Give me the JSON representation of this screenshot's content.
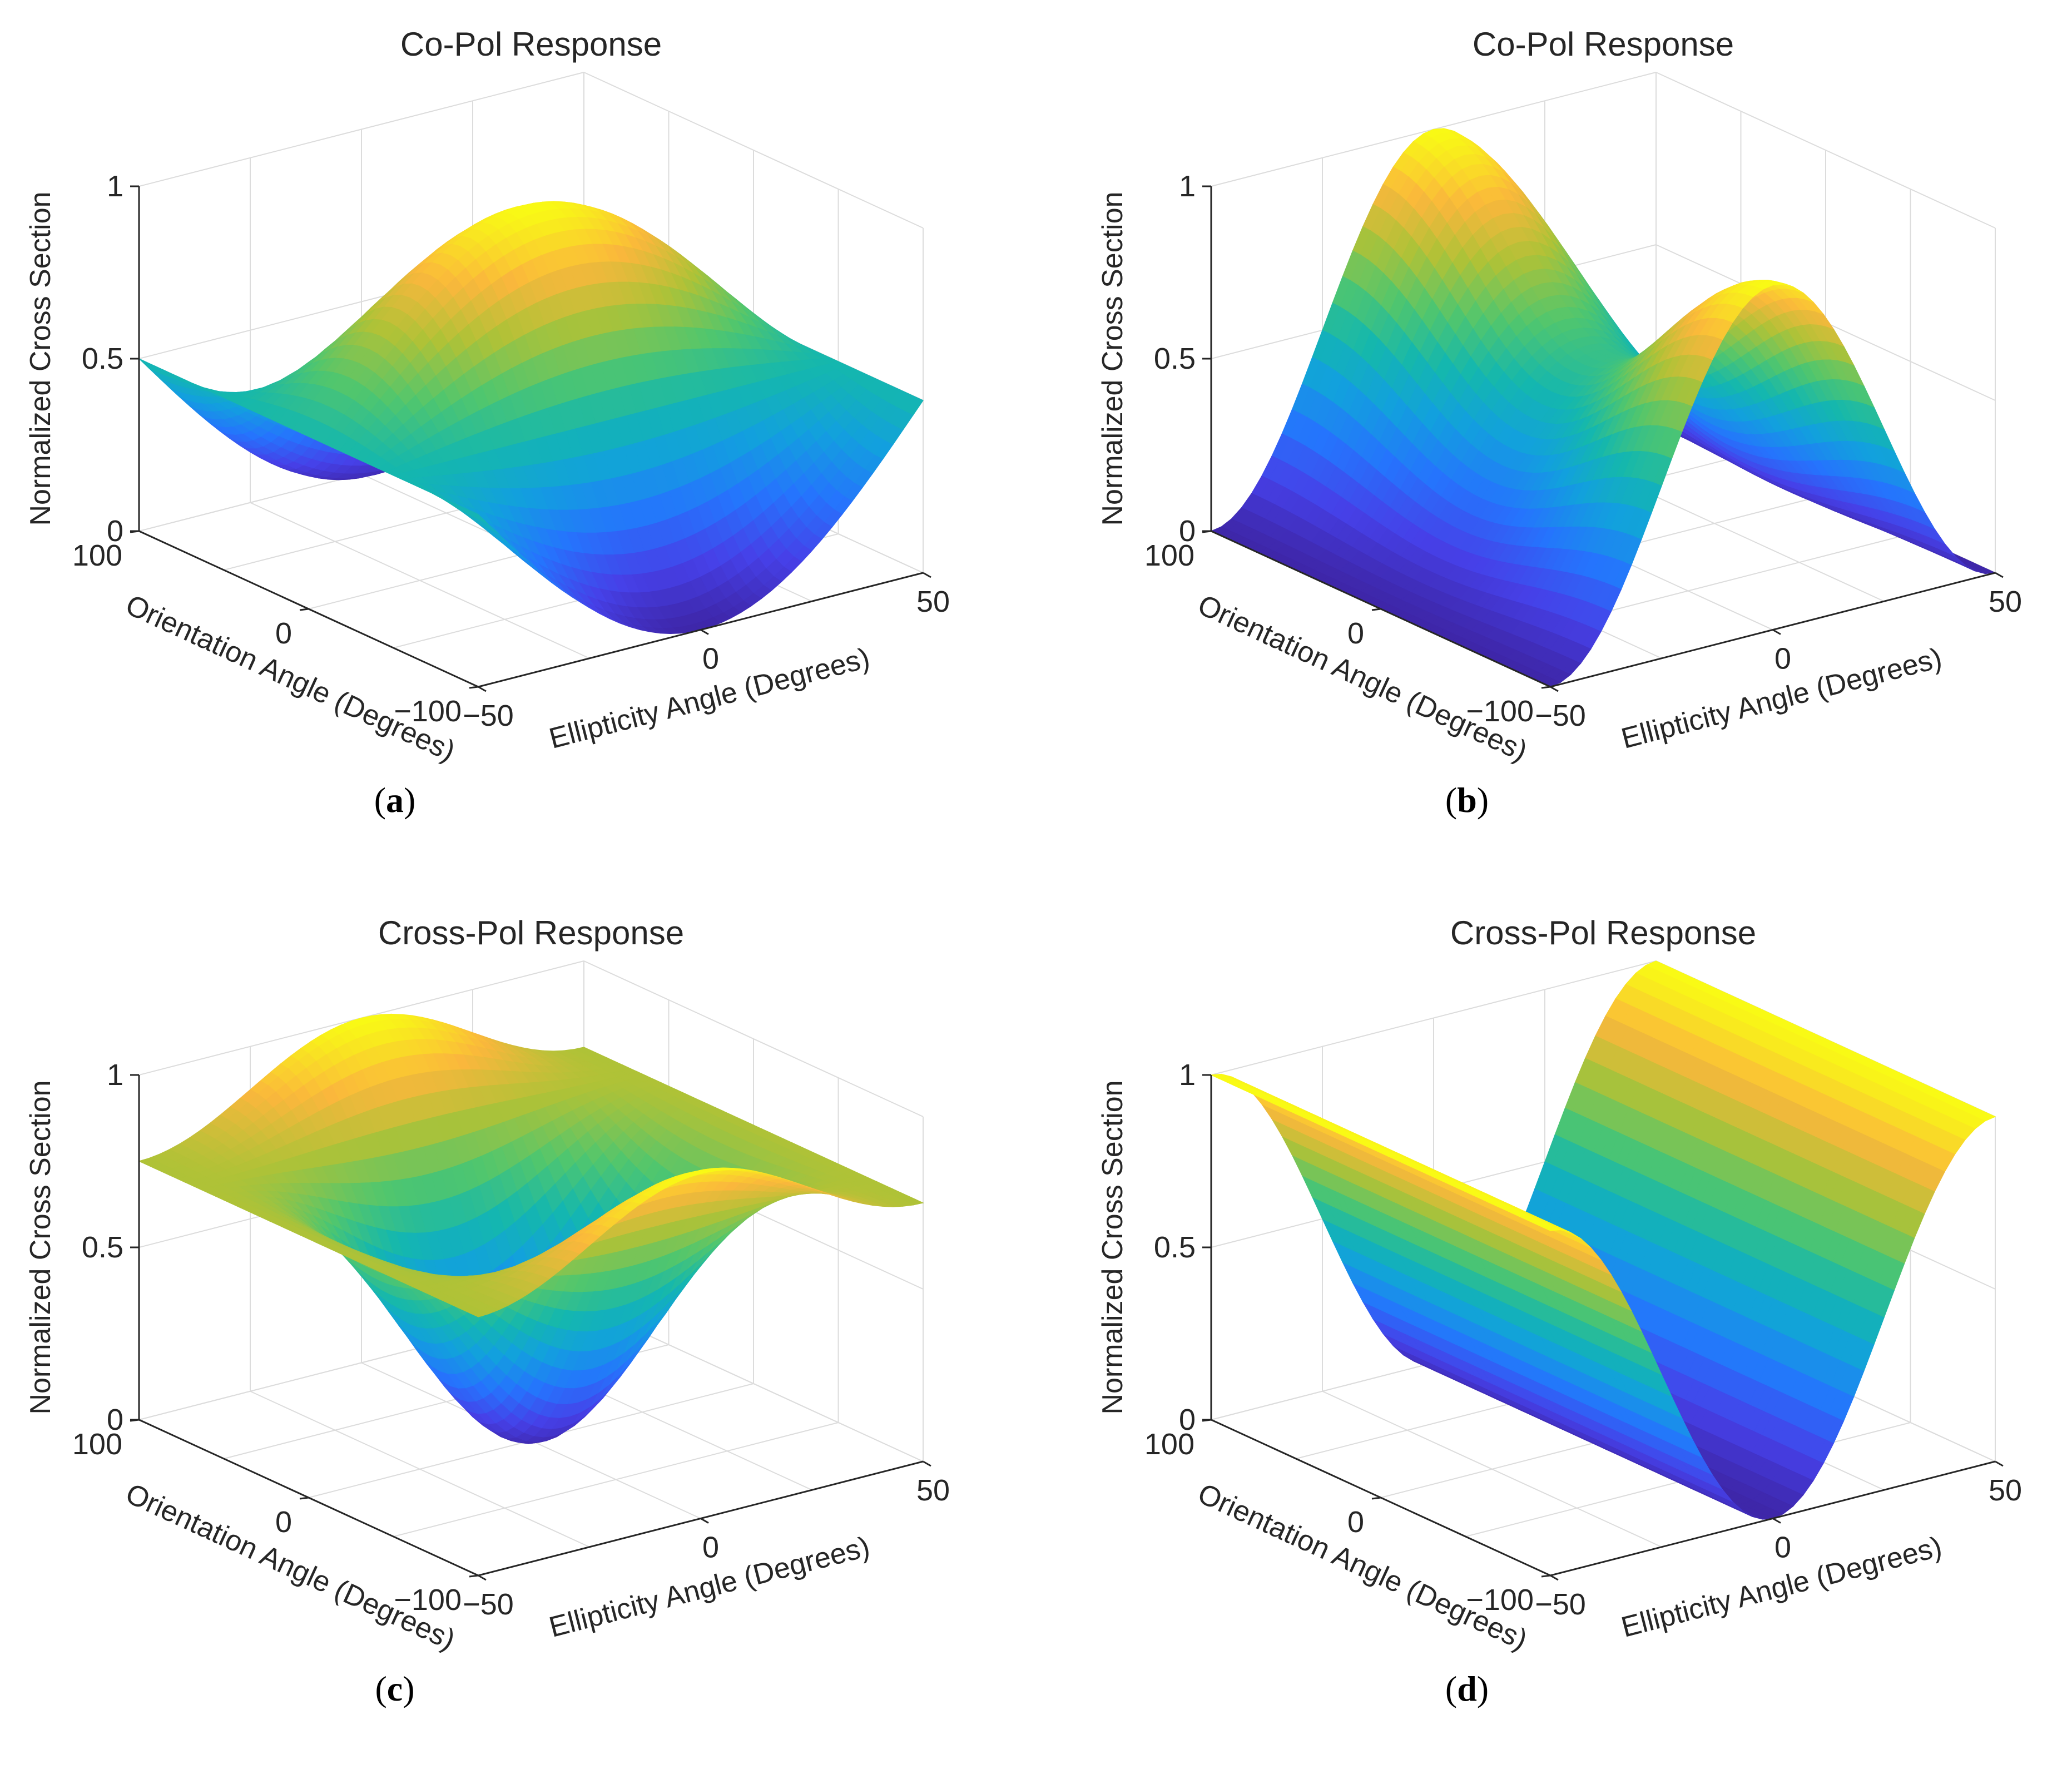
{
  "figure": {
    "panels": [
      {
        "id": "a",
        "caption": "(a)",
        "caption_letter": "a",
        "title": "Co-Pol Response",
        "xlabel": "Ellipticity Angle (Degrees)",
        "ylabel": "Orientation Angle (Degrees)",
        "zlabel": "Normalized Cross Section",
        "xticks": [
          "−50",
          "0",
          "50"
        ],
        "yticks": [
          "100",
          "0",
          "−100"
        ],
        "zticks": [
          "0",
          "0.5",
          "1"
        ]
      },
      {
        "id": "b",
        "caption": "(b)",
        "caption_letter": "b",
        "title": "Co-Pol Response",
        "xlabel": "Ellipticity Angle (Degrees)",
        "ylabel": "Orientation Angle (Degrees)",
        "zlabel": "Normalized Cross Section",
        "xticks": [
          "−50",
          "0",
          "50"
        ],
        "yticks": [
          "100",
          "0",
          "−100"
        ],
        "zticks": [
          "0",
          "0.5",
          "1"
        ]
      },
      {
        "id": "c",
        "caption": "(c)",
        "caption_letter": "c",
        "title": "Cross-Pol Response",
        "xlabel": "Ellipticity Angle (Degrees)",
        "ylabel": "Orientation Angle (Degrees)",
        "zlabel": "Normalized Cross Section",
        "xticks": [
          "−50",
          "0",
          "50"
        ],
        "yticks": [
          "100",
          "0",
          "−100"
        ],
        "zticks": [
          "0",
          "0.5",
          "1"
        ]
      },
      {
        "id": "d",
        "caption": "(d)",
        "caption_letter": "d",
        "title": "Cross-Pol Response",
        "xlabel": "Ellipticity Angle (Degrees)",
        "ylabel": "Orientation Angle (Degrees)",
        "zlabel": "Normalized Cross Section",
        "xticks": [
          "−50",
          "0",
          "50"
        ],
        "yticks": [
          "100",
          "0",
          "−100"
        ],
        "zticks": [
          "0",
          "0.5",
          "1"
        ]
      }
    ]
  },
  "chart_data": [
    {
      "type": "surface",
      "title": "Co-Pol Response",
      "xlabel": "Ellipticity Angle (Degrees)",
      "ylabel": "Orientation Angle (Degrees)",
      "zlabel": "Normalized Cross Section",
      "xlim": [
        -45,
        45
      ],
      "ylim": [
        -90,
        90
      ],
      "zlim": [
        0,
        1
      ],
      "colormap": "parula",
      "grid": true,
      "x": [
        -45,
        -30,
        -15,
        0,
        15,
        30,
        45
      ],
      "y": [
        -90,
        -60,
        -30,
        0,
        30,
        60,
        90
      ],
      "z": [
        [
          0.5,
          0.4,
          0.2,
          0.02,
          0.2,
          0.4,
          0.5
        ],
        [
          0.5,
          0.48,
          0.43,
          0.4,
          0.43,
          0.48,
          0.5
        ],
        [
          0.5,
          0.63,
          0.79,
          0.87,
          0.79,
          0.63,
          0.5
        ],
        [
          0.5,
          0.68,
          0.89,
          1.0,
          0.89,
          0.68,
          0.5
        ],
        [
          0.5,
          0.63,
          0.79,
          0.87,
          0.79,
          0.63,
          0.5
        ],
        [
          0.5,
          0.48,
          0.43,
          0.4,
          0.43,
          0.48,
          0.5
        ],
        [
          0.5,
          0.4,
          0.2,
          0.02,
          0.2,
          0.4,
          0.5
        ]
      ]
    },
    {
      "type": "surface",
      "title": "Co-Pol Response",
      "xlabel": "Ellipticity Angle (Degrees)",
      "ylabel": "Orientation Angle (Degrees)",
      "zlabel": "Normalized Cross Section",
      "xlim": [
        -45,
        45
      ],
      "ylim": [
        -90,
        90
      ],
      "zlim": [
        0,
        1
      ],
      "colormap": "parula",
      "grid": true,
      "x": [
        -45,
        -30,
        -15,
        0,
        15,
        30,
        45
      ],
      "y": [
        -90,
        -60,
        -30,
        0,
        30,
        60,
        90
      ],
      "z": [
        [
          0.0,
          0.25,
          0.75,
          1.0,
          0.75,
          0.25,
          0.0
        ],
        [
          0.0,
          0.21,
          0.64,
          0.86,
          0.64,
          0.21,
          0.0
        ],
        [
          0.0,
          0.16,
          0.48,
          0.64,
          0.48,
          0.16,
          0.0
        ],
        [
          0.0,
          0.14,
          0.43,
          0.57,
          0.43,
          0.14,
          0.0
        ],
        [
          0.0,
          0.16,
          0.48,
          0.64,
          0.48,
          0.16,
          0.0
        ],
        [
          0.0,
          0.21,
          0.64,
          0.86,
          0.64,
          0.21,
          0.0
        ],
        [
          0.0,
          0.25,
          0.75,
          1.0,
          0.75,
          0.25,
          0.0
        ]
      ]
    },
    {
      "type": "surface",
      "title": "Cross-Pol Response",
      "xlabel": "Ellipticity Angle (Degrees)",
      "ylabel": "Orientation Angle (Degrees)",
      "zlabel": "Normalized Cross Section",
      "xlim": [
        -45,
        45
      ],
      "ylim": [
        -90,
        90
      ],
      "zlim": [
        0,
        1
      ],
      "colormap": "parula",
      "grid": true,
      "x": [
        -45,
        -30,
        -15,
        0,
        15,
        30,
        45
      ],
      "y": [
        -90,
        -60,
        -30,
        0,
        30,
        60,
        90
      ],
      "z": [
        [
          0.75,
          0.81,
          0.94,
          1.0,
          0.94,
          0.81,
          0.75
        ],
        [
          0.75,
          0.63,
          0.38,
          0.25,
          0.38,
          0.63,
          0.75
        ],
        [
          0.75,
          0.46,
          0.15,
          0.04,
          0.15,
          0.46,
          0.75
        ],
        [
          0.75,
          0.38,
          0.05,
          0.0,
          0.05,
          0.38,
          0.75
        ],
        [
          0.75,
          0.46,
          0.15,
          0.04,
          0.15,
          0.46,
          0.75
        ],
        [
          0.75,
          0.63,
          0.38,
          0.25,
          0.38,
          0.63,
          0.75
        ],
        [
          0.75,
          0.81,
          0.94,
          1.0,
          0.94,
          0.81,
          0.75
        ]
      ]
    },
    {
      "type": "surface",
      "title": "Cross-Pol Response",
      "xlabel": "Ellipticity Angle (Degrees)",
      "ylabel": "Orientation Angle (Degrees)",
      "zlabel": "Normalized Cross Section",
      "xlim": [
        -45,
        45
      ],
      "ylim": [
        -90,
        90
      ],
      "zlim": [
        0,
        1
      ],
      "colormap": "parula",
      "grid": true,
      "x": [
        -45,
        -30,
        -15,
        0,
        15,
        30,
        45
      ],
      "y": [
        -90,
        -60,
        -30,
        0,
        30,
        60,
        90
      ],
      "z": [
        [
          1.0,
          0.75,
          0.25,
          0.0,
          0.25,
          0.75,
          1.0
        ],
        [
          1.0,
          0.75,
          0.25,
          0.0,
          0.25,
          0.75,
          1.0
        ],
        [
          1.0,
          0.75,
          0.25,
          0.0,
          0.25,
          0.75,
          1.0
        ],
        [
          1.0,
          0.75,
          0.25,
          0.0,
          0.25,
          0.75,
          1.0
        ],
        [
          1.0,
          0.75,
          0.25,
          0.0,
          0.25,
          0.75,
          1.0
        ],
        [
          1.0,
          0.75,
          0.25,
          0.0,
          0.25,
          0.75,
          1.0
        ],
        [
          1.0,
          0.75,
          0.25,
          0.0,
          0.25,
          0.75,
          1.0
        ]
      ]
    }
  ]
}
